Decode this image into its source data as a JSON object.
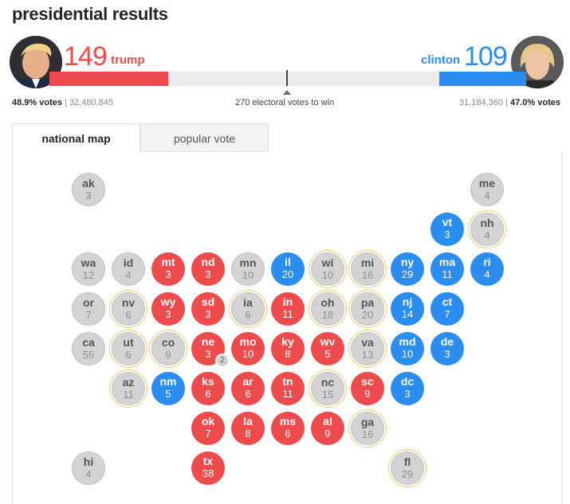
{
  "title": "presidential results",
  "colors": {
    "rep": "#ee4c4c",
    "dem": "#2b8def",
    "undecided": "#d3d3d3",
    "tossup_ring": "#f5c96b"
  },
  "rep": {
    "name": "trump",
    "electoral": "149",
    "pct": "48.9% votes",
    "votes": "32,480,845",
    "share": 0.249
  },
  "dem": {
    "name": "clinton",
    "electoral": "109",
    "pct": "47.0% votes",
    "votes": "31,184,360",
    "share": 0.182
  },
  "to_win": "270 electoral votes to win",
  "tabs": [
    "national map",
    "popular vote"
  ],
  "states": [
    {
      "ab": "ak",
      "ev": "3",
      "c": "U"
    },
    {
      "ab": "me",
      "ev": "4",
      "c": "U"
    },
    {
      "ab": "vt",
      "ev": "3",
      "c": "D"
    },
    {
      "ab": "nh",
      "ev": "4",
      "c": "U",
      "t": 1
    },
    {
      "ab": "wa",
      "ev": "12",
      "c": "U"
    },
    {
      "ab": "id",
      "ev": "4",
      "c": "U"
    },
    {
      "ab": "mt",
      "ev": "3",
      "c": "R"
    },
    {
      "ab": "nd",
      "ev": "3",
      "c": "R"
    },
    {
      "ab": "mn",
      "ev": "10",
      "c": "U"
    },
    {
      "ab": "il",
      "ev": "20",
      "c": "D"
    },
    {
      "ab": "wi",
      "ev": "10",
      "c": "U",
      "t": 1
    },
    {
      "ab": "mi",
      "ev": "16",
      "c": "U",
      "t": 1
    },
    {
      "ab": "ny",
      "ev": "29",
      "c": "D"
    },
    {
      "ab": "ma",
      "ev": "11",
      "c": "D"
    },
    {
      "ab": "ri",
      "ev": "4",
      "c": "D"
    },
    {
      "ab": "or",
      "ev": "7",
      "c": "U"
    },
    {
      "ab": "nv",
      "ev": "6",
      "c": "U",
      "t": 1
    },
    {
      "ab": "wy",
      "ev": "3",
      "c": "R"
    },
    {
      "ab": "sd",
      "ev": "3",
      "c": "R"
    },
    {
      "ab": "ia",
      "ev": "6",
      "c": "U",
      "t": 1
    },
    {
      "ab": "in",
      "ev": "11",
      "c": "R"
    },
    {
      "ab": "oh",
      "ev": "18",
      "c": "U",
      "t": 1
    },
    {
      "ab": "pa",
      "ev": "20",
      "c": "U",
      "t": 1
    },
    {
      "ab": "nj",
      "ev": "14",
      "c": "D"
    },
    {
      "ab": "ct",
      "ev": "7",
      "c": "D"
    },
    {
      "ab": "ca",
      "ev": "55",
      "c": "U"
    },
    {
      "ab": "ut",
      "ev": "6",
      "c": "U",
      "t": 1
    },
    {
      "ab": "co",
      "ev": "9",
      "c": "U",
      "t": 1
    },
    {
      "ab": "ne",
      "ev": "3",
      "c": "R"
    },
    {
      "ab": "mo",
      "ev": "10",
      "c": "R"
    },
    {
      "ab": "ky",
      "ev": "8",
      "c": "R"
    },
    {
      "ab": "wv",
      "ev": "5",
      "c": "R"
    },
    {
      "ab": "va",
      "ev": "13",
      "c": "U",
      "t": 1
    },
    {
      "ab": "md",
      "ev": "10",
      "c": "D"
    },
    {
      "ab": "de",
      "ev": "3",
      "c": "D"
    },
    {
      "ab": "az",
      "ev": "11",
      "c": "U",
      "t": 1
    },
    {
      "ab": "nm",
      "ev": "5",
      "c": "D"
    },
    {
      "ab": "ks",
      "ev": "6",
      "c": "R"
    },
    {
      "ab": "ar",
      "ev": "6",
      "c": "R"
    },
    {
      "ab": "tn",
      "ev": "11",
      "c": "R"
    },
    {
      "ab": "nc",
      "ev": "15",
      "c": "U",
      "t": 1
    },
    {
      "ab": "sc",
      "ev": "9",
      "c": "R"
    },
    {
      "ab": "dc",
      "ev": "3",
      "c": "D"
    },
    {
      "ab": "ok",
      "ev": "7",
      "c": "R"
    },
    {
      "ab": "la",
      "ev": "8",
      "c": "R"
    },
    {
      "ab": "ms",
      "ev": "6",
      "c": "R"
    },
    {
      "ab": "al",
      "ev": "9",
      "c": "R"
    },
    {
      "ab": "ga",
      "ev": "16",
      "c": "U",
      "t": 1
    },
    {
      "ab": "hi",
      "ev": "4",
      "c": "U"
    },
    {
      "ab": "tx",
      "ev": "38",
      "c": "R"
    },
    {
      "ab": "fl",
      "ev": "29",
      "c": "U",
      "t": 1
    }
  ],
  "ne_split_badge": "2"
}
